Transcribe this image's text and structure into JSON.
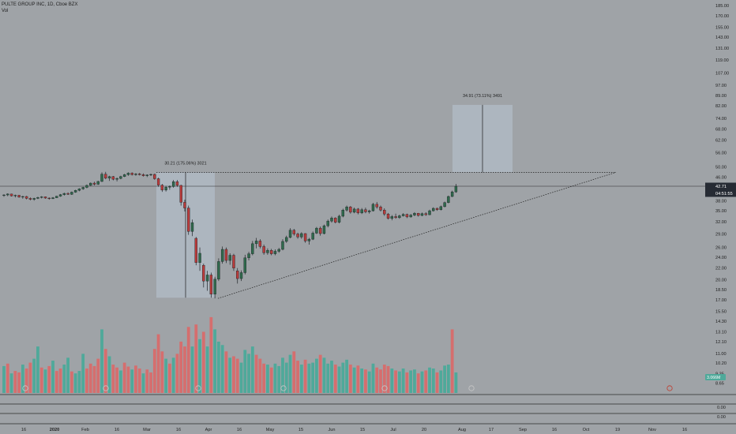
{
  "header": {
    "symbol": "PULTE GROUP INC, 1D, Cboe BZX",
    "volume_label": "Vol"
  },
  "colors": {
    "background": "#9fa3a7",
    "up": "#2f6a4c",
    "down": "#b83b3b",
    "vol_up": "#4fa99a",
    "vol_down": "#d56e6e",
    "grid_line": "#2b2b2b",
    "price_label_bg": "#262b34",
    "measure_fill": "#b5c0cc",
    "axis_text": "#1e1e1e"
  },
  "chart_data": {
    "type": "candlestick",
    "scale": "log",
    "y_ticks": [
      "185.00",
      "170.00",
      "155.00",
      "143.00",
      "131.00",
      "119.00",
      "107.00",
      "97.00",
      "89.00",
      "82.00",
      "74.00",
      "68.00",
      "62.00",
      "56.00",
      "50.00",
      "46.00",
      "42.71",
      "38.00",
      "35.00",
      "32.00",
      "29.00",
      "26.00",
      "24.00",
      "22.00",
      "20.00",
      "18.50",
      "17.00",
      "15.50",
      "14.30",
      "13.10",
      "12.10",
      "11.00",
      "10.20",
      "9.35",
      "8.65"
    ],
    "x_ticks": [
      "16",
      "2020",
      "Feb",
      "16",
      "Mar",
      "16",
      "Apr",
      "16",
      "May",
      "15",
      "Jun",
      "15",
      "Jul",
      "20",
      "Aug",
      "17",
      "Sep",
      "16",
      "Oct",
      "19",
      "Nov",
      "16"
    ],
    "last_price": "42.71",
    "countdown": "04:51:55",
    "volume_value": "3.066M",
    "volume_panel_labels": [
      "0.00",
      "0.00"
    ],
    "measure_1": "30.21 (175.06%) 3021",
    "measure_2": "34.91 (73.11%) 3491",
    "ohlc": [
      [
        39.6,
        40.0,
        39.2,
        39.8
      ],
      [
        39.8,
        40.3,
        39.4,
        40.1
      ],
      [
        40.1,
        40.2,
        39.3,
        39.5
      ],
      [
        39.5,
        39.9,
        39.0,
        39.7
      ],
      [
        39.7,
        39.8,
        38.9,
        39.1
      ],
      [
        39.1,
        39.5,
        38.6,
        39.3
      ],
      [
        39.3,
        39.5,
        38.4,
        38.7
      ],
      [
        38.7,
        39.0,
        38.1,
        38.4
      ],
      [
        38.4,
        38.9,
        38.0,
        38.7
      ],
      [
        38.7,
        39.2,
        38.5,
        39.0
      ],
      [
        39.0,
        39.4,
        38.7,
        39.2
      ],
      [
        39.2,
        39.3,
        38.6,
        38.8
      ],
      [
        38.8,
        39.0,
        38.3,
        38.6
      ],
      [
        38.6,
        39.1,
        38.5,
        38.9
      ],
      [
        38.9,
        39.5,
        38.8,
        39.4
      ],
      [
        39.4,
        40.1,
        39.2,
        39.9
      ],
      [
        39.9,
        40.5,
        39.6,
        40.3
      ],
      [
        40.3,
        40.6,
        39.8,
        40.0
      ],
      [
        40.0,
        40.9,
        39.8,
        40.7
      ],
      [
        40.7,
        41.5,
        40.5,
        41.3
      ],
      [
        41.3,
        42.0,
        41.0,
        41.8
      ],
      [
        41.8,
        42.5,
        41.5,
        42.3
      ],
      [
        42.3,
        43.3,
        42.0,
        43.0
      ],
      [
        43.0,
        44.0,
        42.8,
        43.8
      ],
      [
        43.8,
        44.3,
        43.0,
        43.4
      ],
      [
        43.4,
        44.6,
        43.2,
        44.4
      ],
      [
        44.4,
        47.8,
        44.2,
        47.1
      ],
      [
        47.1,
        48.0,
        45.2,
        45.6
      ],
      [
        45.6,
        46.5,
        44.6,
        46.2
      ],
      [
        46.2,
        46.4,
        44.8,
        45.2
      ],
      [
        45.2,
        45.8,
        44.4,
        45.5
      ],
      [
        45.5,
        46.5,
        45.2,
        46.2
      ],
      [
        46.2,
        47.2,
        46.0,
        46.9
      ],
      [
        46.9,
        47.8,
        46.5,
        47.5
      ],
      [
        47.5,
        47.8,
        46.6,
        46.9
      ],
      [
        46.9,
        47.5,
        46.5,
        47.2
      ],
      [
        47.2,
        47.6,
        46.6,
        46.9
      ],
      [
        46.9,
        47.4,
        46.2,
        46.5
      ],
      [
        46.5,
        47.0,
        46.0,
        46.8
      ],
      [
        46.8,
        47.3,
        46.4,
        47.0
      ],
      [
        47.0,
        47.3,
        45.0,
        45.4
      ],
      [
        45.4,
        45.8,
        42.5,
        43.1
      ],
      [
        43.1,
        43.5,
        40.8,
        41.4
      ],
      [
        41.4,
        42.8,
        40.9,
        42.4
      ],
      [
        42.4,
        43.0,
        41.5,
        42.6
      ],
      [
        42.6,
        44.9,
        42.2,
        44.3
      ],
      [
        44.3,
        44.9,
        42.5,
        43.0
      ],
      [
        43.0,
        43.2,
        36.5,
        37.5
      ],
      [
        37.5,
        38.3,
        34.8,
        35.8
      ],
      [
        35.8,
        36.5,
        28.8,
        29.6
      ],
      [
        29.6,
        32.6,
        28.5,
        31.8
      ],
      [
        28.0,
        28.3,
        22.5,
        23.0
      ],
      [
        23.0,
        26.0,
        21.5,
        24.8
      ],
      [
        22.5,
        22.8,
        18.8,
        19.8
      ],
      [
        19.8,
        21.5,
        18.3,
        20.8
      ],
      [
        20.8,
        21.2,
        17.3,
        17.8
      ],
      [
        17.8,
        20.5,
        17.2,
        20.1
      ],
      [
        20.1,
        23.8,
        19.8,
        23.2
      ],
      [
        23.2,
        26.2,
        22.8,
        25.6
      ],
      [
        25.6,
        26.0,
        22.9,
        23.4
      ],
      [
        23.4,
        24.8,
        22.6,
        24.4
      ],
      [
        24.4,
        24.7,
        21.5,
        22.0
      ],
      [
        21.5,
        22.0,
        19.4,
        20.2
      ],
      [
        20.2,
        21.6,
        19.8,
        21.2
      ],
      [
        21.2,
        24.5,
        20.9,
        23.9
      ],
      [
        23.9,
        25.1,
        23.4,
        24.7
      ],
      [
        24.7,
        27.4,
        24.4,
        26.8
      ],
      [
        26.8,
        28.1,
        25.8,
        27.4
      ],
      [
        27.4,
        27.8,
        25.8,
        26.2
      ],
      [
        26.2,
        26.6,
        24.5,
        24.9
      ],
      [
        24.9,
        25.8,
        24.5,
        25.4
      ],
      [
        25.4,
        25.7,
        24.4,
        24.7
      ],
      [
        24.7,
        25.6,
        24.4,
        25.2
      ],
      [
        25.2,
        25.9,
        24.9,
        25.6
      ],
      [
        25.6,
        27.8,
        25.4,
        27.3
      ],
      [
        27.3,
        28.6,
        27.0,
        28.2
      ],
      [
        28.2,
        30.4,
        28.0,
        29.9
      ],
      [
        29.9,
        30.2,
        28.6,
        29.0
      ],
      [
        29.0,
        29.3,
        27.9,
        28.3
      ],
      [
        28.3,
        29.4,
        27.9,
        29.1
      ],
      [
        29.1,
        29.2,
        27.0,
        27.4
      ],
      [
        27.4,
        28.1,
        26.6,
        27.8
      ],
      [
        27.8,
        29.6,
        27.6,
        29.2
      ],
      [
        29.2,
        30.7,
        29.0,
        30.4
      ],
      [
        30.4,
        30.8,
        28.6,
        29.1
      ],
      [
        29.1,
        31.3,
        28.9,
        31.0
      ],
      [
        31.0,
        32.6,
        30.6,
        32.2
      ],
      [
        32.2,
        33.4,
        31.8,
        33.0
      ],
      [
        33.0,
        33.2,
        31.6,
        31.9
      ],
      [
        31.9,
        33.9,
        31.6,
        33.5
      ],
      [
        33.5,
        35.6,
        33.2,
        35.2
      ],
      [
        35.2,
        36.5,
        34.8,
        36.1
      ],
      [
        36.1,
        36.4,
        34.2,
        34.6
      ],
      [
        34.6,
        35.9,
        34.3,
        35.5
      ],
      [
        35.5,
        35.8,
        34.0,
        34.4
      ],
      [
        34.4,
        35.8,
        34.1,
        35.3
      ],
      [
        35.3,
        35.9,
        34.3,
        34.7
      ],
      [
        34.7,
        35.3,
        34.2,
        35.0
      ],
      [
        35.0,
        37.3,
        34.8,
        36.9
      ],
      [
        36.9,
        37.6,
        35.6,
        36.1
      ],
      [
        36.1,
        36.5,
        34.8,
        35.2
      ],
      [
        35.2,
        35.7,
        33.6,
        34.1
      ],
      [
        34.1,
        34.4,
        32.6,
        32.9
      ],
      [
        32.9,
        33.8,
        32.4,
        33.4
      ],
      [
        33.4,
        34.2,
        32.8,
        33.1
      ],
      [
        33.1,
        33.9,
        32.8,
        33.6
      ],
      [
        33.6,
        34.3,
        33.4,
        34.0
      ],
      [
        34.0,
        34.2,
        33.0,
        33.3
      ],
      [
        33.3,
        34.1,
        33.1,
        33.8
      ],
      [
        33.8,
        34.6,
        33.5,
        34.3
      ],
      [
        34.3,
        34.4,
        33.4,
        33.7
      ],
      [
        33.7,
        34.5,
        33.5,
        34.2
      ],
      [
        34.2,
        34.6,
        33.6,
        33.9
      ],
      [
        33.9,
        35.3,
        33.8,
        35.0
      ],
      [
        35.0,
        36.0,
        34.8,
        35.7
      ],
      [
        35.7,
        35.9,
        35.0,
        35.3
      ],
      [
        35.3,
        36.5,
        35.1,
        36.2
      ],
      [
        36.2,
        37.7,
        36.0,
        37.4
      ],
      [
        37.4,
        39.6,
        37.2,
        39.3
      ],
      [
        39.3,
        41.2,
        39.1,
        40.8
      ],
      [
        40.8,
        43.5,
        40.5,
        42.7
      ]
    ],
    "volume": [
      [
        0.55,
        1
      ],
      [
        0.6,
        0
      ],
      [
        0.4,
        1
      ],
      [
        0.45,
        0
      ],
      [
        0.42,
        0
      ],
      [
        0.58,
        1
      ],
      [
        0.5,
        0
      ],
      [
        0.62,
        0
      ],
      [
        0.7,
        1
      ],
      [
        0.95,
        1
      ],
      [
        0.52,
        0
      ],
      [
        0.48,
        1
      ],
      [
        0.55,
        0
      ],
      [
        0.66,
        1
      ],
      [
        0.45,
        0
      ],
      [
        0.5,
        0
      ],
      [
        0.58,
        1
      ],
      [
        0.72,
        1
      ],
      [
        0.44,
        0
      ],
      [
        0.4,
        1
      ],
      [
        0.45,
        1
      ],
      [
        0.8,
        1
      ],
      [
        0.5,
        0
      ],
      [
        0.6,
        0
      ],
      [
        0.55,
        0
      ],
      [
        0.7,
        0
      ],
      [
        1.3,
        1
      ],
      [
        0.9,
        0
      ],
      [
        0.75,
        1
      ],
      [
        0.58,
        0
      ],
      [
        0.52,
        0
      ],
      [
        0.46,
        1
      ],
      [
        0.62,
        0
      ],
      [
        0.54,
        0
      ],
      [
        0.48,
        1
      ],
      [
        0.56,
        0
      ],
      [
        0.5,
        0
      ],
      [
        0.4,
        1
      ],
      [
        0.48,
        0
      ],
      [
        0.42,
        0
      ],
      [
        0.9,
        0
      ],
      [
        1.2,
        0
      ],
      [
        0.85,
        0
      ],
      [
        0.7,
        1
      ],
      [
        0.6,
        0
      ],
      [
        0.72,
        1
      ],
      [
        0.8,
        0
      ],
      [
        1.05,
        0
      ],
      [
        0.95,
        0
      ],
      [
        1.35,
        0
      ],
      [
        0.95,
        1
      ],
      [
        1.4,
        0
      ],
      [
        1.1,
        1
      ],
      [
        1.25,
        0
      ],
      [
        0.95,
        1
      ],
      [
        1.55,
        0
      ],
      [
        1.3,
        1
      ],
      [
        1.05,
        1
      ],
      [
        0.98,
        1
      ],
      [
        0.85,
        0
      ],
      [
        0.72,
        1
      ],
      [
        0.75,
        0
      ],
      [
        0.7,
        0
      ],
      [
        0.62,
        1
      ],
      [
        0.88,
        1
      ],
      [
        0.8,
        1
      ],
      [
        0.95,
        1
      ],
      [
        0.78,
        0
      ],
      [
        0.7,
        0
      ],
      [
        0.6,
        0
      ],
      [
        0.58,
        1
      ],
      [
        0.52,
        0
      ],
      [
        0.6,
        1
      ],
      [
        0.55,
        1
      ],
      [
        0.72,
        1
      ],
      [
        0.62,
        1
      ],
      [
        0.78,
        1
      ],
      [
        0.85,
        0
      ],
      [
        0.66,
        0
      ],
      [
        0.58,
        1
      ],
      [
        0.68,
        0
      ],
      [
        0.6,
        1
      ],
      [
        0.62,
        1
      ],
      [
        0.7,
        1
      ],
      [
        0.78,
        0
      ],
      [
        0.72,
        1
      ],
      [
        0.6,
        1
      ],
      [
        0.66,
        1
      ],
      [
        0.58,
        0
      ],
      [
        0.54,
        1
      ],
      [
        0.62,
        1
      ],
      [
        0.68,
        1
      ],
      [
        0.58,
        0
      ],
      [
        0.52,
        1
      ],
      [
        0.56,
        0
      ],
      [
        0.5,
        1
      ],
      [
        0.48,
        0
      ],
      [
        0.44,
        1
      ],
      [
        0.6,
        1
      ],
      [
        0.52,
        0
      ],
      [
        0.48,
        0
      ],
      [
        0.58,
        0
      ],
      [
        0.55,
        0
      ],
      [
        0.5,
        1
      ],
      [
        0.46,
        0
      ],
      [
        0.44,
        1
      ],
      [
        0.5,
        1
      ],
      [
        0.42,
        0
      ],
      [
        0.46,
        1
      ],
      [
        0.48,
        1
      ],
      [
        0.4,
        0
      ],
      [
        0.44,
        1
      ],
      [
        0.46,
        0
      ],
      [
        0.52,
        1
      ],
      [
        0.5,
        1
      ],
      [
        0.42,
        0
      ],
      [
        0.46,
        1
      ],
      [
        0.56,
        1
      ],
      [
        0.58,
        1
      ],
      [
        1.3,
        0
      ],
      [
        0.42,
        1
      ]
    ]
  }
}
